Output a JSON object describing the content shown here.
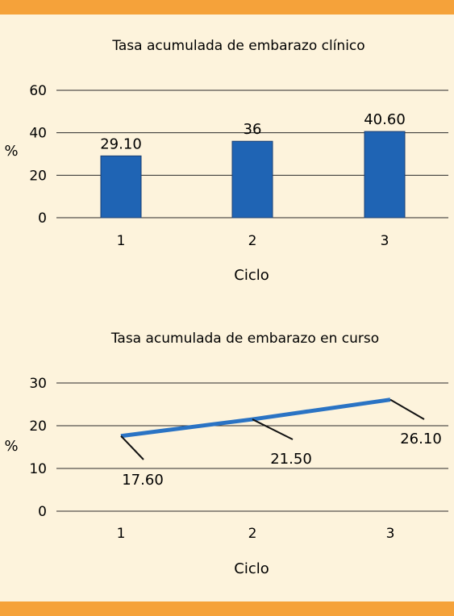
{
  "chart_data": [
    {
      "type": "bar",
      "title": "Tasa acumulada de embarazo clínico",
      "xlabel": "Ciclo",
      "ylabel": "%",
      "categories": [
        "1",
        "2",
        "3"
      ],
      "values": [
        29.1,
        36,
        40.6
      ],
      "value_labels": [
        "29.10",
        "36",
        "40.60"
      ],
      "ylim": [
        0,
        60
      ],
      "yticks": [
        "0",
        "20",
        "40",
        "60"
      ],
      "grid": true,
      "bar_color": "#1f64b4"
    },
    {
      "type": "line",
      "title": "Tasa acumulada de embarazo en curso",
      "xlabel": "Ciclo",
      "ylabel": "%",
      "categories": [
        "1",
        "2",
        "3"
      ],
      "values": [
        17.6,
        21.5,
        26.1
      ],
      "value_labels": [
        "17.60",
        "21.50",
        "26.10"
      ],
      "ylim": [
        0,
        30
      ],
      "yticks": [
        "0",
        "10",
        "20",
        "30"
      ],
      "grid": true,
      "line_color": "#2a73c4"
    }
  ],
  "colors": {
    "background": "#fdf3dc",
    "band": "#f5a23a"
  }
}
